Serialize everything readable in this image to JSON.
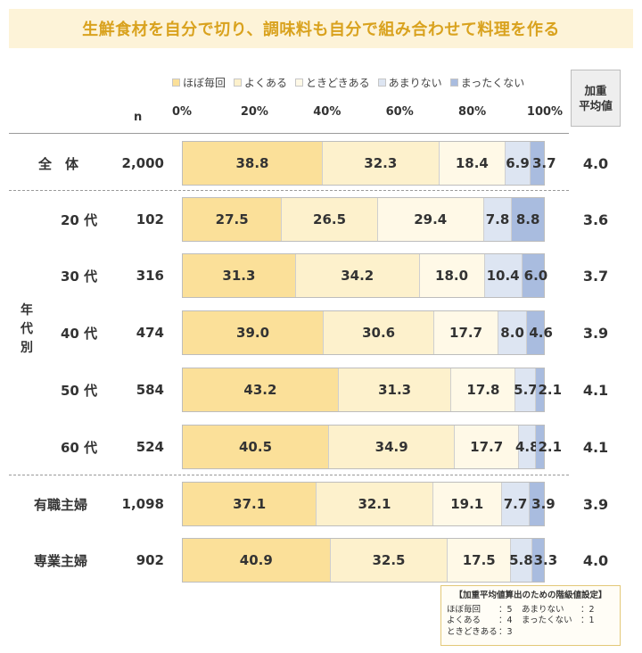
{
  "title": "生鮮食材を自分で切り、調味料も自分で組み合わせて料理を作る",
  "legend": [
    {
      "label": "ほぼ毎回",
      "color": "#fbe099"
    },
    {
      "label": "よくある",
      "color": "#fdf1cc"
    },
    {
      "label": "ときどきある",
      "color": "#fff9e7"
    },
    {
      "label": "あまりない",
      "color": "#dde5f2"
    },
    {
      "label": "まったくない",
      "color": "#a9bcdf"
    }
  ],
  "n_header": "n",
  "weighted_header": {
    "line1": "加重",
    "line2": "平均値"
  },
  "group_label": [
    "年",
    "代",
    "別"
  ],
  "chart_data": {
    "type": "bar",
    "orientation": "horizontal",
    "stacked": true,
    "xlim": [
      0,
      100
    ],
    "ticks": [
      "0%",
      "20%",
      "40%",
      "60%",
      "80%",
      "100%"
    ],
    "categories": [
      "全　体",
      "20 代",
      "30 代",
      "40 代",
      "50 代",
      "60 代",
      "有職主婦",
      "専業主婦"
    ],
    "n": [
      "2,000",
      "102",
      "316",
      "474",
      "584",
      "524",
      "1,098",
      "902"
    ],
    "series": [
      {
        "name": "ほぼ毎回",
        "values": [
          38.8,
          27.5,
          31.3,
          39.0,
          43.2,
          40.5,
          37.1,
          40.9
        ]
      },
      {
        "name": "よくある",
        "values": [
          32.3,
          26.5,
          34.2,
          30.6,
          31.3,
          34.9,
          32.1,
          32.5
        ]
      },
      {
        "name": "ときどきある",
        "values": [
          18.4,
          29.4,
          18.0,
          17.7,
          17.8,
          17.7,
          19.1,
          17.5
        ]
      },
      {
        "name": "あまりない",
        "values": [
          6.9,
          7.8,
          10.4,
          8.0,
          5.7,
          4.8,
          7.7,
          5.8
        ]
      },
      {
        "name": "まったくない",
        "values": [
          3.7,
          8.8,
          6.0,
          4.6,
          2.1,
          2.1,
          3.9,
          3.3
        ]
      }
    ],
    "weighted_average": [
      "4.0",
      "3.6",
      "3.7",
      "3.9",
      "4.1",
      "4.1",
      "3.9",
      "4.0"
    ]
  },
  "note": {
    "title": "【加重平均値算出のための階級値設定】",
    "items": [
      [
        "ほぼ毎回",
        "：5",
        "あまりない",
        "：2"
      ],
      [
        "よくある",
        "：4",
        "まったくない",
        "：1"
      ],
      [
        "ときどきある",
        "：3",
        "",
        ""
      ]
    ]
  }
}
